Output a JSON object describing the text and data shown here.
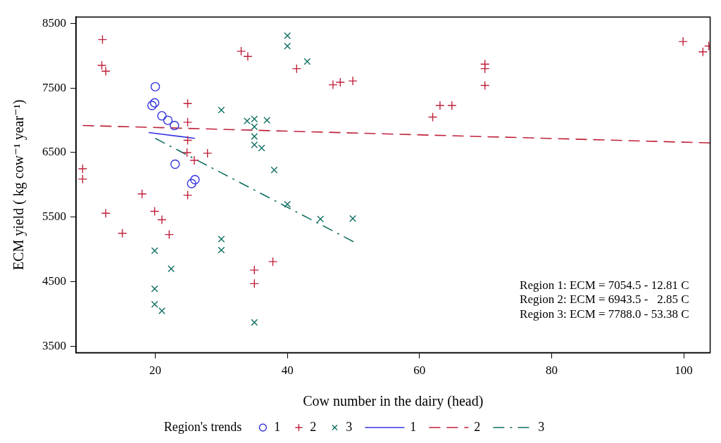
{
  "chart_data": {
    "type": "scatter",
    "xlabel": "Cow number in the dairy (head)",
    "ylabel": "ECM yield ( kg cow⁻¹ year⁻¹)",
    "legend_title": "Region's trends",
    "legend": "bottom",
    "grid": false,
    "xlim": [
      8,
      104
    ],
    "xticks": [
      20,
      40,
      60,
      80,
      100
    ],
    "ylim": [
      3400,
      8600
    ],
    "yticks": [
      3500,
      4500,
      5500,
      6500,
      7500,
      8500
    ],
    "annotations": [
      "Region 1: ECM = 7054.5 - 12.81 C",
      "Region 2: ECM = 6943.5 -   2.85 C",
      "Region 3: ECM = 7788.0 - 53.38 C"
    ],
    "series": [
      {
        "name": "1",
        "type": "scatter",
        "marker": "circle",
        "color": "#3535e0",
        "x": [
          20,
          19.9,
          19.5,
          21,
          21.9,
          22.9,
          23,
          25.5,
          26
        ],
        "values": [
          7520,
          7270,
          7230,
          7070,
          7000,
          6920,
          6320,
          6020,
          6080
        ]
      },
      {
        "name": "2",
        "type": "scatter",
        "marker": "plus",
        "color": "#c0203a",
        "x": [
          12,
          11.9,
          12.5,
          24.9,
          24.9,
          24.9,
          24.8,
          27.9,
          25.9,
          9,
          9,
          18,
          24.9,
          12.5,
          19.9,
          21,
          22.1,
          15,
          35,
          35,
          37.8,
          33,
          34,
          41.4,
          46.9,
          48,
          49.9,
          62,
          63.1,
          64.9,
          69.9,
          69.9,
          69.9,
          99.9,
          102.9,
          103.8
        ],
        "values": [
          8250,
          7850,
          7760,
          7260,
          6970,
          6690,
          6500,
          6490,
          6380,
          6250,
          6090,
          5860,
          5840,
          5560,
          5590,
          5460,
          5230,
          5250,
          4680,
          4470,
          4810,
          8070,
          7990,
          7800,
          7550,
          7590,
          7610,
          7050,
          7230,
          7230,
          7870,
          7800,
          7540,
          8220,
          8060,
          8150
        ]
      },
      {
        "name": "3",
        "type": "scatter",
        "marker": "cross",
        "color": "#0f6e60",
        "x": [
          30,
          33.9,
          35,
          36.9,
          35,
          35,
          35,
          36.1,
          38,
          40,
          40,
          43,
          40,
          45,
          49.9,
          30,
          30,
          35,
          19.9,
          22.4,
          19.9,
          19.9,
          21
        ],
        "values": [
          7160,
          6990,
          7020,
          7000,
          6900,
          6750,
          6620,
          6570,
          6230,
          8310,
          8150,
          7910,
          5700,
          5470,
          5480,
          5160,
          4990,
          3870,
          4980,
          4700,
          4390,
          4150,
          4050
        ]
      },
      {
        "name": "1",
        "type": "line",
        "line_style": "solid",
        "color": "#3535e0",
        "x": [
          19,
          26
        ],
        "values": [
          6810,
          6720
        ]
      },
      {
        "name": "2",
        "type": "line",
        "line_style": "dashed",
        "color": "#c0203a",
        "x": [
          9,
          104
        ],
        "values": [
          6920,
          6650
        ]
      },
      {
        "name": "3",
        "type": "line",
        "line_style": "dashdot",
        "color": "#0f6e60",
        "x": [
          20,
          50
        ],
        "values": [
          6720,
          5120
        ]
      }
    ]
  }
}
